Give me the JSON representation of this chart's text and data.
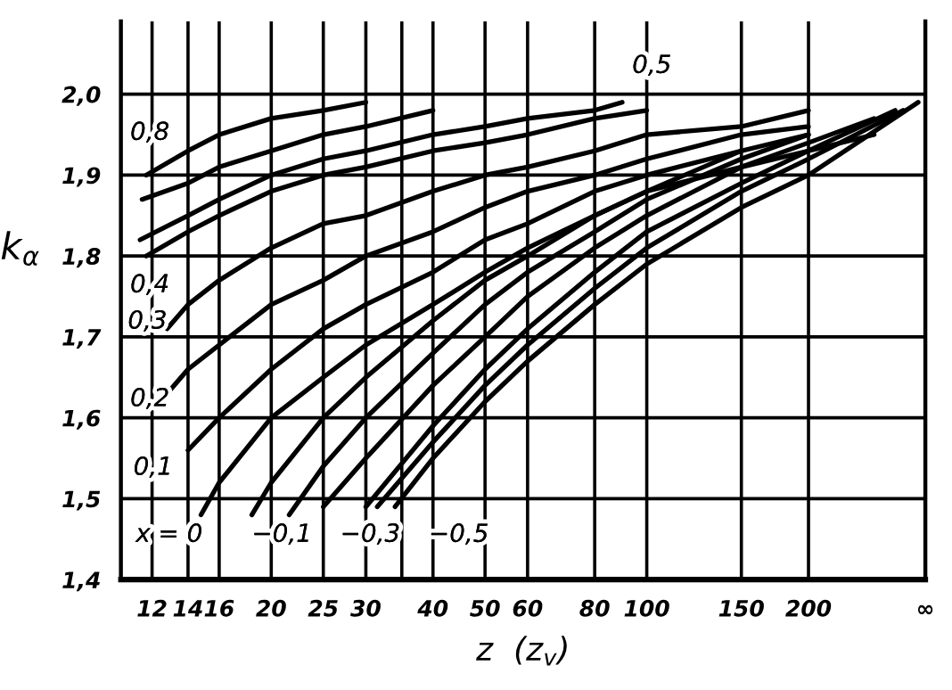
{
  "chart_data": {
    "type": "line",
    "xlabel": "z  (z$_{v}$)",
    "ylabel": "k$_{α}$",
    "xlim": [
      10.5,
      330
    ],
    "ylim": [
      1.4,
      2.09
    ],
    "log": "x",
    "xticks": [
      12,
      14,
      16,
      20,
      25,
      30,
      {
        "value": 35,
        "label": null
      },
      40,
      50,
      60,
      80,
      100,
      150,
      200,
      {
        "value": 330,
        "label": "∞"
      }
    ],
    "yticks": [
      {
        "value": 1.4,
        "label": "1,4"
      },
      {
        "value": 1.5,
        "label": "1,5"
      },
      {
        "value": 1.6,
        "label": "1,6"
      },
      {
        "value": 1.7,
        "label": "1,7"
      },
      {
        "value": 1.8,
        "label": "1,8"
      },
      {
        "value": 1.9,
        "label": "1,9"
      },
      {
        "value": 2.0,
        "label": "2,0"
      }
    ],
    "grid": true,
    "marker": "none",
    "line_style": "solid",
    "series": [
      {
        "color": "#000000",
        "x": [
          11.7,
          14,
          16,
          20,
          25,
          30
        ],
        "values": [
          1.9,
          1.93,
          1.95,
          1.97,
          1.98,
          1.99
        ]
      },
      {
        "color": "#000000",
        "x": [
          11.5,
          14,
          16,
          20,
          25,
          30,
          40
        ],
        "values": [
          1.87,
          1.89,
          1.91,
          1.93,
          1.95,
          1.96,
          1.98
        ]
      },
      {
        "color": "#000000",
        "x": [
          11.4,
          14,
          16,
          20,
          25,
          30,
          40,
          50,
          60,
          80,
          90
        ],
        "values": [
          1.82,
          1.85,
          1.87,
          1.9,
          1.92,
          1.93,
          1.95,
          1.96,
          1.97,
          1.98,
          1.99
        ]
      },
      {
        "color": "#000000",
        "x": [
          11.7,
          14,
          16,
          20,
          25,
          30,
          40,
          50,
          60,
          80,
          100
        ],
        "values": [
          1.8,
          1.83,
          1.85,
          1.88,
          1.9,
          1.91,
          1.93,
          1.94,
          1.95,
          1.97,
          1.98
        ]
      },
      {
        "color": "#000000",
        "x": [
          12.8,
          14,
          16,
          20,
          25,
          30,
          40,
          50,
          60,
          80,
          100,
          150,
          200
        ],
        "values": [
          1.71,
          1.74,
          1.77,
          1.81,
          1.84,
          1.85,
          1.88,
          1.9,
          1.91,
          1.93,
          1.95,
          1.96,
          1.98
        ]
      },
      {
        "color": "#000000",
        "x": [
          12.8,
          14,
          16,
          20,
          25,
          30,
          40,
          50,
          60,
          80,
          100,
          150,
          200
        ],
        "values": [
          1.63,
          1.66,
          1.69,
          1.74,
          1.77,
          1.8,
          1.83,
          1.86,
          1.88,
          1.9,
          1.92,
          1.95,
          1.96
        ]
      },
      {
        "color": "#000000",
        "x": [
          14,
          16,
          20,
          25,
          30,
          40,
          50,
          60,
          80,
          100,
          150,
          200
        ],
        "values": [
          1.56,
          1.6,
          1.66,
          1.71,
          1.74,
          1.78,
          1.82,
          1.84,
          1.88,
          1.9,
          1.93,
          1.95
        ]
      },
      {
        "color": "#000000",
        "x": [
          14.8,
          16,
          20,
          25,
          30,
          40,
          50,
          60,
          80,
          100,
          150,
          200,
          265
        ],
        "values": [
          1.48,
          1.52,
          1.6,
          1.65,
          1.69,
          1.74,
          1.78,
          1.81,
          1.85,
          1.88,
          1.91,
          1.93,
          1.95
        ]
      },
      {
        "color": "#000000",
        "x": [
          18.4,
          20,
          25,
          30,
          40,
          50,
          60,
          80,
          100,
          150
        ],
        "values": [
          1.48,
          1.52,
          1.6,
          1.65,
          1.72,
          1.77,
          1.8,
          1.85,
          1.88,
          1.93
        ]
      },
      {
        "color": "#000000",
        "x": [
          21.6,
          25,
          30,
          40,
          50,
          60,
          80,
          100,
          150,
          200
        ],
        "values": [
          1.48,
          1.54,
          1.6,
          1.68,
          1.74,
          1.78,
          1.83,
          1.87,
          1.92,
          1.95
        ]
      },
      {
        "color": "#000000",
        "x": [
          25,
          30,
          40,
          50,
          60,
          80,
          100,
          150,
          200,
          265
        ],
        "values": [
          1.49,
          1.55,
          1.64,
          1.7,
          1.75,
          1.81,
          1.85,
          1.91,
          1.94,
          1.97
        ]
      },
      {
        "color": "#000000",
        "x": [
          30,
          40,
          50,
          60,
          80,
          100,
          150,
          200,
          290
        ],
        "values": [
          1.49,
          1.59,
          1.66,
          1.71,
          1.78,
          1.83,
          1.89,
          1.93,
          1.98
        ]
      },
      {
        "color": "#000000",
        "x": [
          31.5,
          40,
          50,
          60,
          80,
          100,
          150,
          200,
          300
        ],
        "values": [
          1.49,
          1.57,
          1.64,
          1.69,
          1.76,
          1.81,
          1.88,
          1.92,
          1.98
        ]
      },
      {
        "color": "#000000",
        "x": [
          34,
          40,
          50,
          60,
          80,
          100,
          150,
          200,
          320
        ],
        "values": [
          1.49,
          1.55,
          1.62,
          1.67,
          1.74,
          1.79,
          1.86,
          1.9,
          1.99
        ]
      }
    ],
    "annotations": [
      "0,8",
      "0,5",
      "0,4",
      "0,3",
      "0,2",
      "0,1",
      "x = 0",
      "−0,1",
      "−0,3",
      "−0,5"
    ]
  }
}
